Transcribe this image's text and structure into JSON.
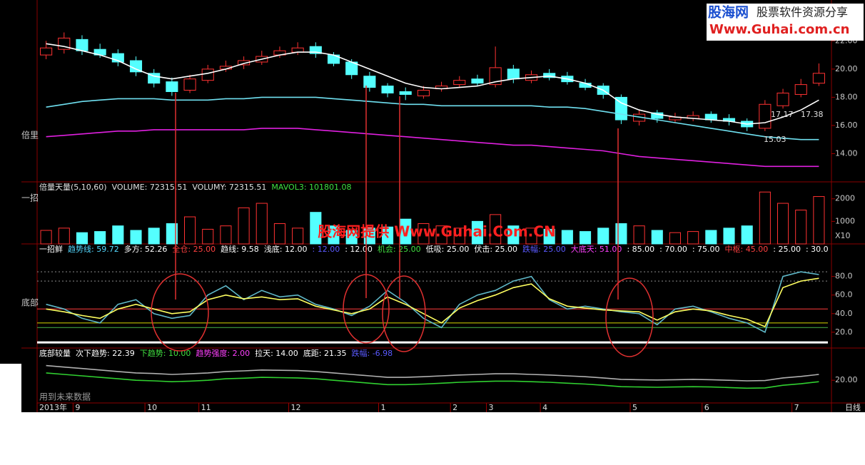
{
  "watermark": {
    "title": "股海网",
    "subtitle": "股票软件资源分享",
    "url": "Www.Guhai.com.cn"
  },
  "overlay_text": "股海网提供 Www.Guhai.Com.CN",
  "left_labels": [
    "倍里",
    "一招",
    "底部"
  ],
  "note": "用到未来数据",
  "chart_data": [
    {
      "type": "candlestick",
      "categories": [
        "2013年",
        null,
        "9",
        null,
        null,
        null,
        "10",
        null,
        null,
        "11",
        null,
        null,
        null,
        null,
        "12",
        null,
        null,
        null,
        null,
        "1",
        null,
        null,
        null,
        "2",
        null,
        "3",
        null,
        null,
        "4",
        null,
        null,
        null,
        null,
        "5",
        null,
        null,
        null,
        "6",
        null,
        null,
        null,
        null,
        "7",
        null
      ],
      "period_label": "日线",
      "open": [
        21.0,
        21.4,
        22.1,
        21.4,
        21.1,
        20.6,
        19.7,
        19.1,
        18.5,
        19.2,
        20.0,
        20.3,
        20.5,
        21.0,
        21.2,
        21.6,
        21.0,
        20.5,
        19.5,
        18.8,
        18.4,
        18.1,
        18.6,
        18.9,
        19.3,
        18.9,
        20.0,
        19.2,
        19.7,
        19.5,
        19.0,
        18.8,
        18.0,
        16.3,
        16.9,
        16.4,
        16.5,
        16.8,
        16.5,
        16.3,
        15.8,
        17.4,
        18.2,
        19.0
      ],
      "high": [
        22.0,
        22.6,
        22.4,
        21.8,
        21.4,
        20.9,
        20.0,
        19.4,
        19.6,
        20.3,
        20.6,
        20.9,
        21.3,
        21.6,
        21.9,
        21.9,
        21.2,
        20.7,
        19.8,
        19.0,
        18.7,
        18.8,
        19.1,
        19.5,
        19.6,
        21.6,
        20.3,
        19.9,
        20.0,
        19.8,
        19.3,
        19.0,
        18.2,
        17.1,
        17.1,
        16.9,
        17.0,
        17.0,
        16.8,
        16.5,
        17.8,
        18.6,
        19.3,
        20.4
      ],
      "low": [
        20.7,
        21.1,
        21.0,
        20.8,
        20.2,
        19.5,
        18.7,
        18.1,
        18.3,
        19.0,
        19.8,
        20.0,
        20.3,
        20.8,
        21.0,
        20.8,
        20.2,
        19.3,
        18.4,
        18.0,
        17.8,
        17.9,
        18.4,
        18.7,
        18.8,
        18.7,
        19.0,
        19.0,
        19.2,
        18.9,
        18.5,
        17.9,
        16.1,
        16.0,
        16.2,
        16.2,
        16.3,
        16.2,
        16.0,
        15.6,
        15.6,
        17.2,
        18.0,
        18.8
      ],
      "close": [
        21.5,
        22.2,
        21.3,
        21.0,
        20.5,
        19.8,
        19.0,
        18.4,
        19.3,
        20.0,
        20.2,
        20.6,
        20.9,
        21.3,
        21.5,
        21.1,
        20.4,
        19.6,
        18.7,
        18.3,
        18.2,
        18.5,
        18.8,
        19.2,
        19.0,
        20.1,
        19.3,
        19.6,
        19.4,
        19.1,
        18.7,
        18.2,
        16.4,
        16.8,
        16.5,
        16.6,
        16.7,
        16.4,
        16.3,
        15.9,
        17.5,
        18.3,
        18.9,
        19.7
      ],
      "up_color": "#ff3232",
      "down_color": "#54ffff",
      "series": [
        {
          "color": "#ffffff",
          "values": [
            21.8,
            21.6,
            21.3,
            21.0,
            20.6,
            20.0,
            19.5,
            19.3,
            19.5,
            19.7,
            20.0,
            20.4,
            20.7,
            21.0,
            21.2,
            21.2,
            21.0,
            20.5,
            20.0,
            19.5,
            19.0,
            18.7,
            18.6,
            18.7,
            18.8,
            19.1,
            19.3,
            19.4,
            19.5,
            19.3,
            19.0,
            18.5,
            17.6,
            17.1,
            16.8,
            16.6,
            16.5,
            16.4,
            16.3,
            16.1,
            16.2,
            16.6,
            17.1,
            17.8
          ]
        },
        {
          "color": "#6fe0f0",
          "values": [
            17.3,
            17.5,
            17.7,
            17.8,
            17.9,
            17.9,
            17.9,
            17.8,
            17.8,
            17.8,
            17.9,
            17.9,
            18.0,
            18.0,
            18.0,
            18.0,
            17.9,
            17.8,
            17.7,
            17.6,
            17.5,
            17.5,
            17.4,
            17.4,
            17.4,
            17.4,
            17.4,
            17.4,
            17.3,
            17.3,
            17.2,
            17.0,
            16.8,
            16.6,
            16.4,
            16.2,
            16.0,
            15.8,
            15.6,
            15.4,
            15.2,
            15.1,
            15.0,
            15.0
          ]
        },
        {
          "color": "#e020e0",
          "values": [
            15.2,
            15.3,
            15.4,
            15.5,
            15.6,
            15.6,
            15.7,
            15.7,
            15.7,
            15.7,
            15.7,
            15.7,
            15.8,
            15.8,
            15.8,
            15.7,
            15.6,
            15.5,
            15.4,
            15.3,
            15.2,
            15.1,
            15.0,
            14.9,
            14.8,
            14.7,
            14.6,
            14.6,
            14.5,
            14.4,
            14.3,
            14.2,
            14.0,
            13.8,
            13.7,
            13.6,
            13.5,
            13.4,
            13.3,
            13.2,
            13.1,
            13.1,
            13.1,
            13.1
          ]
        }
      ],
      "annotations": [
        "17.17",
        "17.38",
        "15.03"
      ],
      "ylim": [
        12,
        24.9
      ],
      "yticks": [
        {
          "value": 14,
          "label": "14.00"
        },
        {
          "value": 16,
          "label": "16.00"
        },
        {
          "value": 18,
          "label": "18.00"
        },
        {
          "value": 20,
          "label": "20.00"
        },
        {
          "value": 22,
          "label": "22.00"
        }
      ]
    },
    {
      "type": "bar",
      "header": [
        {
          "text": "倍量天量(5,10,60)",
          "color": "#e0e0e0"
        },
        {
          "text": "VOLUME: 72315.51",
          "color": "#e0e0e0"
        },
        {
          "text": "VOLUMY: 72315.51",
          "color": "#e0e0e0"
        },
        {
          "text": "MAVOL3: 101801.08",
          "color": "#40e040"
        }
      ],
      "values": [
        600,
        700,
        500,
        550,
        800,
        600,
        700,
        900,
        1200,
        650,
        800,
        1600,
        1800,
        900,
        700,
        1400,
        800,
        600,
        700,
        750,
        1100,
        900,
        800,
        700,
        1000,
        1300,
        800,
        700,
        650,
        600,
        550,
        700,
        900,
        800,
        600,
        500,
        550,
        600,
        700,
        800,
        2300,
        1800,
        1500,
        2100
      ],
      "unit_label": "X10",
      "ylim": [
        0,
        2750
      ],
      "yticks": [
        1000,
        2000
      ]
    },
    {
      "type": "line",
      "header": [
        {
          "text": "一招鲜",
          "color": "#ffffff"
        },
        {
          "text": "趋势线: 59.72",
          "color": "#54d8ff"
        },
        {
          "text": "多方: 52.26",
          "color": "#ffffff"
        },
        {
          "text": "全仓: 25.00",
          "color": "#ff4040"
        },
        {
          "text": "趋线: 9.58",
          "color": "#ffffff"
        },
        {
          "text": "浅底: 12.00",
          "color": "#ffffff"
        },
        {
          "text": ": 12.00",
          "color": "#5a5aff"
        },
        {
          "text": ": 12.00",
          "color": "#ffffff"
        },
        {
          "text": "机会: 25.00",
          "color": "#40e040"
        },
        {
          "text": "低吸: 25.00",
          "color": "#ffffff"
        },
        {
          "text": "伏击: 25.00",
          "color": "#ffffff"
        },
        {
          "text": "跌幅: 25.00",
          "color": "#5a5aff"
        },
        {
          "text": "大底天: 51.00",
          "color": "#ff40ff"
        },
        {
          "text": ": 85.00",
          "color": "#ffffff"
        },
        {
          "text": ": 70.00",
          "color": "#ffffff"
        },
        {
          "text": ": 75.00",
          "color": "#ffffff"
        },
        {
          "text": "中枢: 45.00",
          "color": "#ff4040"
        },
        {
          "text": ": 25.00",
          "color": "#ffffff"
        },
        {
          "text": ": 30.0",
          "color": "#ffffff"
        }
      ],
      "series": [
        {
          "color": "#5fb8c8",
          "values": [
            50,
            45,
            35,
            30,
            50,
            55,
            40,
            35,
            38,
            60,
            70,
            55,
            65,
            58,
            60,
            50,
            45,
            38,
            48,
            65,
            52,
            35,
            25,
            50,
            60,
            65,
            75,
            80,
            55,
            45,
            48,
            45,
            42,
            40,
            28,
            45,
            48,
            42,
            35,
            30,
            20,
            80,
            85,
            82
          ]
        },
        {
          "color": "#ffff60",
          "values": [
            45,
            42,
            38,
            35,
            45,
            50,
            45,
            40,
            42,
            55,
            60,
            56,
            58,
            55,
            56,
            48,
            44,
            40,
            45,
            58,
            50,
            40,
            30,
            46,
            54,
            60,
            68,
            72,
            56,
            48,
            46,
            44,
            43,
            42,
            33,
            42,
            45,
            43,
            38,
            34,
            26,
            68,
            75,
            78
          ]
        }
      ],
      "reference_lines": [
        {
          "value": 45,
          "color": "#d03030"
        },
        {
          "value": 30,
          "color": "#c0c000"
        },
        {
          "value": 25,
          "color": "#40a040"
        },
        {
          "value": 85,
          "color": "#707070"
        },
        {
          "value": 75,
          "color": "#707070"
        },
        {
          "value": 9,
          "color": "#ffffff"
        }
      ],
      "ylim": [
        3,
        115
      ],
      "yticks": [
        {
          "value": 20,
          "label": "20.0"
        },
        {
          "value": 40,
          "label": "40.0"
        },
        {
          "value": 60,
          "label": "60.0"
        },
        {
          "value": 80,
          "label": "80.0"
        }
      ]
    },
    {
      "type": "line",
      "header": [
        {
          "text": "底部较量",
          "color": "#ffffff"
        },
        {
          "text": "次下趋势: 22.39",
          "color": "#ffffff"
        },
        {
          "text": "下趋势: 10.00",
          "color": "#40e040"
        },
        {
          "text": "趋势强度: 2.00",
          "color": "#ff40ff"
        },
        {
          "text": "拉天: 14.00",
          "color": "#ffffff"
        },
        {
          "text": "底距: 21.35",
          "color": "#ffffff"
        },
        {
          "text": "跌幅: -6.98",
          "color": "#5a5aff"
        }
      ],
      "series": [
        {
          "color": "#b0b0b0",
          "values": [
            25,
            24.5,
            24,
            23.5,
            23,
            22.5,
            22.3,
            22,
            22.2,
            22.5,
            23,
            23.2,
            23.5,
            23.4,
            23.3,
            23,
            22.5,
            22,
            21.5,
            21,
            21,
            21.2,
            21.5,
            21.8,
            22,
            22.2,
            22.2,
            22,
            21.8,
            21.5,
            21.2,
            20.8,
            20.3,
            20.2,
            20.1,
            20.2,
            20.3,
            20.2,
            20,
            19.8,
            19.9,
            20.8,
            21.3,
            22
          ]
        },
        {
          "color": "#30d030",
          "values": [
            22.5,
            22,
            21.5,
            21,
            20.5,
            20,
            19.8,
            19.5,
            19.7,
            20,
            20.5,
            20.7,
            21,
            20.9,
            20.8,
            20.5,
            20,
            19.5,
            19,
            18.5,
            18.5,
            18.7,
            19,
            19.3,
            19.5,
            19.7,
            19.7,
            19.5,
            19.3,
            19,
            18.7,
            18.3,
            17.8,
            17.7,
            17.6,
            17.7,
            17.8,
            17.7,
            17.5,
            17.3,
            17.4,
            18.3,
            18.8,
            19.5
          ]
        }
      ],
      "ylim": [
        12.25,
        31
      ],
      "yticks": [
        {
          "value": 20,
          "label": "20.00"
        }
      ]
    }
  ]
}
